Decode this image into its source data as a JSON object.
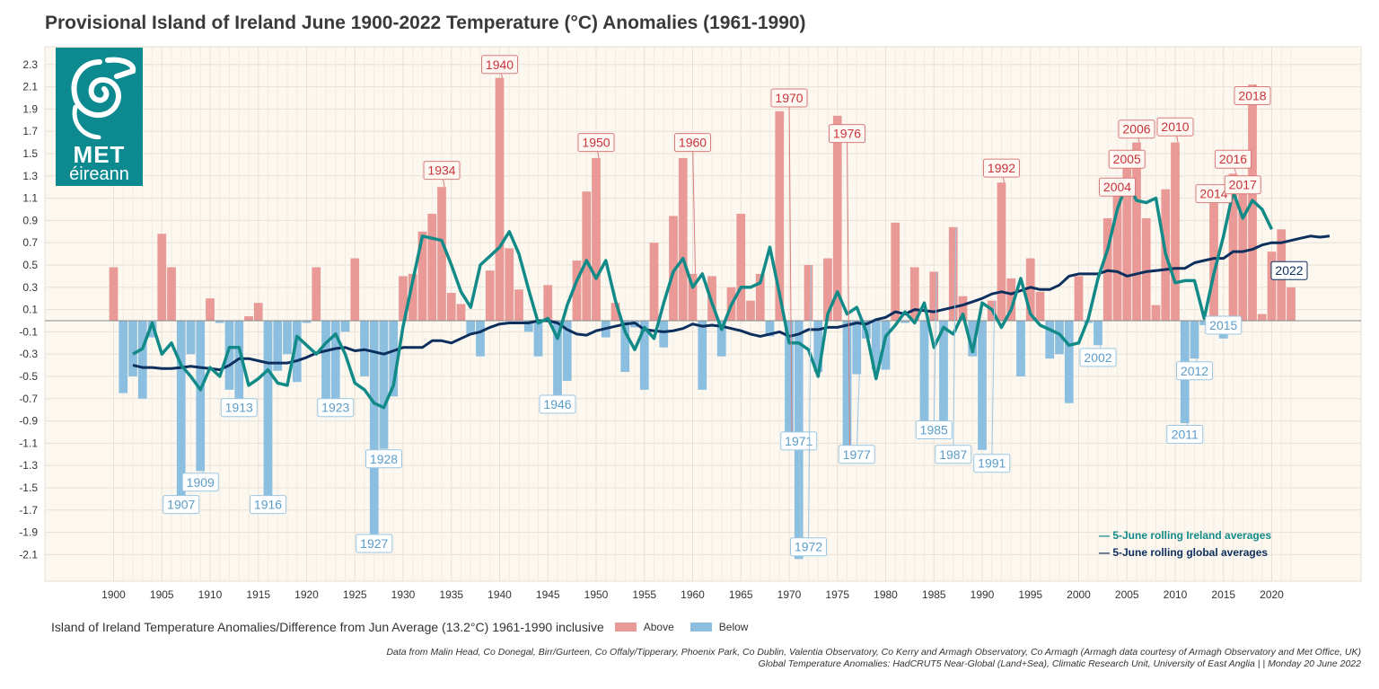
{
  "title": "Provisional Island of Ireland June 1900-2022 Temperature (°C) Anomalies (1961-1990)",
  "logo": {
    "line1": "MET",
    "line2": "éireann",
    "icon": "spiral-triskele-icon"
  },
  "colors": {
    "above": "#e99a96",
    "below": "#8cbfdf",
    "ireland_line": "#128a88",
    "global_line": "#0c2f5e",
    "background": "#fdf8ef",
    "label_above_text": "#c8343b",
    "label_below_text": "#5b9cc9"
  },
  "chart_data": {
    "type": "bar",
    "x_start": 1900,
    "x_end": 2022,
    "values": [
      0.48,
      -0.65,
      -0.5,
      -0.7,
      -0.15,
      0.78,
      0.48,
      -1.7,
      -0.3,
      -1.35,
      0.2,
      -0.02,
      -0.62,
      -0.75,
      0.04,
      0.16,
      -1.72,
      -0.45,
      -0.3,
      -0.55,
      -0.02,
      0.48,
      -0.7,
      -0.75,
      -0.1,
      0.56,
      -0.5,
      -1.95,
      -1.15,
      -0.68,
      0.4,
      0.42,
      0.8,
      0.96,
      1.2,
      0.25,
      0.15,
      -0.12,
      -0.32,
      0.45,
      2.18,
      0.65,
      0.28,
      -0.1,
      -0.32,
      0.32,
      -0.8,
      -0.54,
      0.54,
      1.16,
      1.46,
      -0.15,
      0.16,
      -0.46,
      -0.06,
      -0.62,
      0.7,
      -0.24,
      0.94,
      1.46,
      0.42,
      -0.62,
      0.4,
      -0.32,
      0.3,
      0.96,
      0.18,
      0.42,
      -0.14,
      1.88,
      -1.02,
      -2.14,
      0.5,
      -0.46,
      0.56,
      1.84,
      -1.12,
      -0.48,
      -0.16,
      -0.44,
      -0.44,
      0.88,
      -0.02,
      0.48,
      -1.02,
      0.44,
      -1.06,
      0.84,
      0.22,
      -0.32,
      -1.16,
      0.18,
      1.24,
      0.38,
      -0.5,
      0.56,
      0.26,
      -0.34,
      -0.3,
      -0.74,
      0.4,
      -0.02,
      -0.22,
      0.92,
      1.28,
      1.42,
      1.6,
      0.92,
      0.14,
      1.18,
      1.6,
      -0.92,
      -0.34,
      -0.04,
      1.2,
      -0.16,
      1.32,
      1.28,
      2.12,
      0.06,
      0.62,
      0.82,
      0.3
    ],
    "ireland_rolling_x_start": 1902,
    "ireland_rolling": [
      -0.3,
      -0.25,
      -0.02,
      -0.3,
      -0.2,
      -0.4,
      -0.5,
      -0.62,
      -0.42,
      -0.5,
      -0.24,
      -0.24,
      -0.58,
      -0.52,
      -0.44,
      -0.56,
      -0.58,
      -0.14,
      -0.22,
      -0.3,
      -0.2,
      -0.12,
      -0.3,
      -0.56,
      -0.62,
      -0.74,
      -0.78,
      -0.58,
      -0.05,
      0.36,
      0.76,
      0.74,
      0.72,
      0.5,
      0.26,
      0.12,
      0.5,
      0.58,
      0.66,
      0.8,
      0.6,
      0.28,
      -0.02,
      0.02,
      -0.16,
      0.14,
      0.36,
      0.54,
      0.38,
      0.54,
      0.18,
      -0.1,
      -0.26,
      -0.06,
      -0.16,
      0.16,
      0.44,
      0.56,
      0.3,
      0.42,
      0.16,
      -0.08,
      0.14,
      0.3,
      0.3,
      0.34,
      0.66,
      0.24,
      -0.2,
      -0.2,
      -0.26,
      -0.5,
      0.06,
      0.26,
      0.06,
      0.12,
      -0.1,
      -0.52,
      -0.14,
      -0.04,
      0.08,
      -0.02,
      0.16,
      -0.24,
      -0.06,
      -0.12,
      0.06,
      -0.28,
      0.16,
      0.1,
      -0.06,
      0.1,
      0.38,
      0.06,
      -0.04,
      -0.08,
      -0.12,
      -0.22,
      -0.2,
      0.02,
      0.38,
      0.64,
      1.0,
      1.24,
      1.08,
      1.06,
      1.1,
      0.6,
      0.34,
      0.36,
      0.36,
      0.02,
      0.42,
      0.76,
      1.16,
      0.92,
      1.08,
      1.0,
      0.82
    ],
    "global_rolling_x_start": 1902,
    "global_rolling": [
      -0.4,
      -0.42,
      -0.42,
      -0.43,
      -0.43,
      -0.42,
      -0.41,
      -0.42,
      -0.43,
      -0.44,
      -0.4,
      -0.34,
      -0.34,
      -0.36,
      -0.38,
      -0.38,
      -0.38,
      -0.36,
      -0.33,
      -0.29,
      -0.27,
      -0.25,
      -0.24,
      -0.27,
      -0.26,
      -0.28,
      -0.3,
      -0.27,
      -0.24,
      -0.24,
      -0.24,
      -0.18,
      -0.18,
      -0.2,
      -0.16,
      -0.12,
      -0.1,
      -0.06,
      -0.03,
      -0.02,
      -0.02,
      -0.02,
      0.0,
      0.0,
      -0.02,
      -0.08,
      -0.12,
      -0.13,
      -0.09,
      -0.07,
      -0.05,
      -0.03,
      -0.02,
      -0.08,
      -0.09,
      -0.1,
      -0.09,
      -0.07,
      -0.03,
      -0.05,
      -0.04,
      -0.05,
      -0.07,
      -0.09,
      -0.12,
      -0.14,
      -0.12,
      -0.1,
      -0.14,
      -0.12,
      -0.08,
      -0.08,
      -0.06,
      -0.06,
      -0.04,
      -0.02,
      -0.03,
      0.01,
      0.03,
      0.08,
      0.06,
      0.1,
      0.09,
      0.08,
      0.1,
      0.12,
      0.14,
      0.17,
      0.2,
      0.24,
      0.26,
      0.24,
      0.27,
      0.3,
      0.28,
      0.28,
      0.32,
      0.4,
      0.42,
      0.42,
      0.42,
      0.45,
      0.44,
      0.4,
      0.42,
      0.44,
      0.45,
      0.46,
      0.47,
      0.47,
      0.52,
      0.54,
      0.56,
      0.56,
      0.62,
      0.62,
      0.64,
      0.68,
      0.7,
      0.7,
      0.72,
      0.74,
      0.76,
      0.75,
      0.76
    ],
    "y_axis": {
      "min": -2.2,
      "max": 2.4,
      "ticks": [
        -2.1,
        -1.9,
        -1.7,
        -1.5,
        -1.3,
        -1.1,
        -0.9,
        -0.7,
        -0.5,
        -0.3,
        -0.1,
        0.1,
        0.3,
        0.5,
        0.7,
        0.9,
        1.1,
        1.3,
        1.5,
        1.7,
        1.9,
        2.1,
        2.3
      ]
    },
    "x_axis": {
      "ticks": [
        1900,
        1905,
        1910,
        1915,
        1920,
        1925,
        1930,
        1935,
        1940,
        1945,
        1950,
        1955,
        1960,
        1965,
        1970,
        1975,
        1980,
        1985,
        1990,
        1995,
        2000,
        2005,
        2010,
        2015,
        2020
      ]
    },
    "annotations_above": [
      {
        "year": 1940,
        "text": "1940",
        "label_y": 2.3
      },
      {
        "year": 1934,
        "text": "1934",
        "label_y": 1.35
      },
      {
        "year": 1950,
        "text": "1950",
        "label_y": 1.6
      },
      {
        "year": 1960,
        "text": "1960",
        "label_y": 1.6
      },
      {
        "year": 1970,
        "text": "1970",
        "label_y": 2.0
      },
      {
        "year": 1976,
        "text": "1976",
        "label_y": 1.68
      },
      {
        "year": 1992,
        "text": "1992",
        "label_y": 1.37
      },
      {
        "year": 2004,
        "text": "2004",
        "label_y": 1.2
      },
      {
        "year": 2006,
        "text": "2006",
        "label_y": 1.72
      },
      {
        "year": 2005,
        "text": "2005",
        "label_y": 1.45
      },
      {
        "year": 2010,
        "text": "2010",
        "label_y": 1.74
      },
      {
        "year": 2014,
        "text": "2014",
        "label_y": 1.14
      },
      {
        "year": 2016,
        "text": "2016",
        "label_y": 1.45
      },
      {
        "year": 2017,
        "text": "2017",
        "label_y": 1.22
      },
      {
        "year": 2018,
        "text": "2018",
        "label_y": 2.02
      }
    ],
    "annotations_below": [
      {
        "year": 1913,
        "text": "1913",
        "label_y": -0.78
      },
      {
        "year": 1909,
        "text": "1909",
        "label_y": -1.45
      },
      {
        "year": 1907,
        "text": "1907",
        "label_y": -1.65
      },
      {
        "year": 1916,
        "text": "1916",
        "label_y": -1.65
      },
      {
        "year": 1923,
        "text": "1923",
        "label_y": -0.78
      },
      {
        "year": 1928,
        "text": "1928",
        "label_y": -1.24
      },
      {
        "year": 1927,
        "text": "1927",
        "label_y": -2.0
      },
      {
        "year": 1946,
        "text": "1946",
        "label_y": -0.75
      },
      {
        "year": 1971,
        "text": "1971",
        "label_y": -1.08
      },
      {
        "year": 1977,
        "text": "1977",
        "label_y": -1.2
      },
      {
        "year": 1972,
        "text": "1972",
        "label_y": -2.03
      },
      {
        "year": 1985,
        "text": "1985",
        "label_y": -0.98
      },
      {
        "year": 1987,
        "text": "1987",
        "label_y": -1.2
      },
      {
        "year": 1991,
        "text": "1991",
        "label_y": -1.28
      },
      {
        "year": 2002,
        "text": "2002",
        "label_y": -0.33
      },
      {
        "year": 2012,
        "text": "2012",
        "label_y": -0.45
      },
      {
        "year": 2011,
        "text": "2011",
        "label_y": -1.02
      },
      {
        "year": 2015,
        "text": "2015",
        "label_y": -0.04
      }
    ],
    "current_year_label": {
      "year": 2022,
      "text": "2022"
    },
    "legend": [
      {
        "text": "— 5-June rolling Ireland averages",
        "series": "ireland_line"
      },
      {
        "text": "— 5-June rolling global averages",
        "series": "global_line"
      }
    ]
  },
  "caption": {
    "main": "Island of Ireland Temperature Anomalies/Difference from Jun Average (13.2°C) 1961-1990 inclusive",
    "above": "Above",
    "below": "Below"
  },
  "source": {
    "line1": "Data from Malin Head, Co Donegal, Birr/Gurteen, Co Offaly/Tipperary, Phoenix Park, Co Dublin, Valentia Observatory, Co Kerry and Armagh Observatory, Co Armagh (Armagh data courtesy of Armagh Observatory and Met Office, UK)",
    "line2": "Global Temperature Anomalies: HadCRUT5 Near-Global (Land+Sea), Climatic Research Unit, University of East Anglia |  | Monday 20 June 2022"
  }
}
